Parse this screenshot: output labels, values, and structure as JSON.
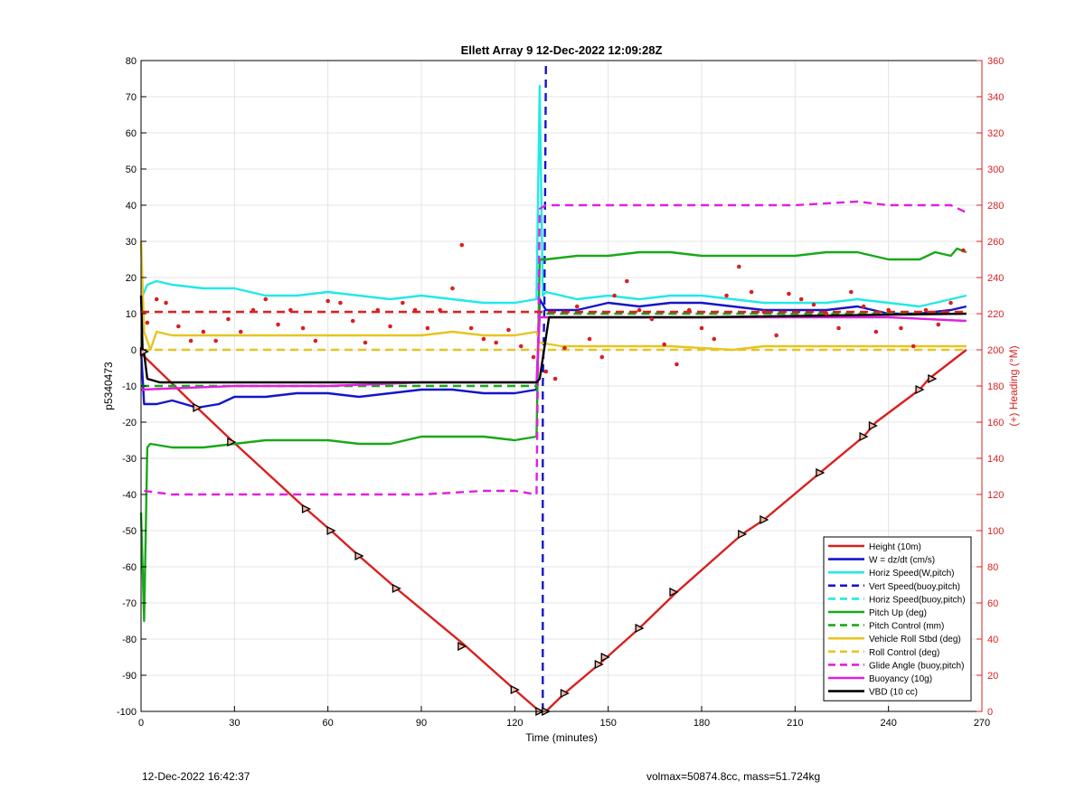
{
  "footer": {
    "left": "12-Dec-2022 16:42:37",
    "right": "volmax=50874.8cc, mass=51.724kg"
  },
  "chart_data": {
    "type": "line",
    "title": "Ellett Array 9 12-Dec-2022 12:09:28Z",
    "xlabel": "Time (minutes)",
    "ylabel": "p5340473",
    "y2label": "(+) Heading (°M)",
    "xlim": [
      0,
      270
    ],
    "ylim": [
      -100,
      80
    ],
    "y2lim": [
      0,
      360
    ],
    "xticks": [
      0,
      30,
      60,
      90,
      120,
      150,
      180,
      210,
      240,
      270
    ],
    "yticks": [
      -100,
      -90,
      -80,
      -70,
      -60,
      -50,
      -40,
      -30,
      -20,
      -10,
      0,
      10,
      20,
      30,
      40,
      50,
      60,
      70,
      80
    ],
    "y2ticks": [
      0,
      20,
      40,
      60,
      80,
      100,
      120,
      140,
      160,
      180,
      200,
      220,
      240,
      260,
      280,
      300,
      320,
      340,
      360
    ],
    "grid": true,
    "legend_position": "bottom-right",
    "colors": {
      "red": "#d92020",
      "blue": "#1515c8",
      "cyan": "#22e8e8",
      "green": "#18a818",
      "yellow": "#e6c420",
      "magenta": "#e020e0",
      "black": "#000000",
      "axis2": "#d92020"
    },
    "series": [
      {
        "name": "Height (10m)",
        "color": "#d92020",
        "style": "solid",
        "axis": "left",
        "x": [
          0,
          18,
          29,
          53,
          61,
          70,
          82,
          103,
          120,
          128,
          130,
          136,
          147,
          160,
          172,
          193,
          200,
          218,
          232,
          236,
          250,
          253,
          265
        ],
        "y": [
          -1,
          -16,
          -25,
          -44,
          -50,
          -57,
          -66,
          -81,
          -94,
          -100,
          -100,
          -95,
          -87,
          -77,
          -67,
          -51,
          -47,
          -34,
          -24,
          -20,
          -11,
          -8,
          0
        ]
      },
      {
        "name": "W = dz/dt (cm/s)",
        "color": "#1515c8",
        "style": "solid",
        "axis": "left",
        "x": [
          0,
          1,
          5,
          10,
          18,
          25,
          30,
          40,
          50,
          60,
          70,
          80,
          90,
          100,
          110,
          120,
          127,
          128,
          130,
          140,
          150,
          160,
          170,
          180,
          190,
          200,
          210,
          220,
          230,
          240,
          250,
          260,
          265
        ],
        "y": [
          0,
          -15,
          -15,
          -14,
          -16,
          -15,
          -13,
          -13,
          -12,
          -12,
          -13,
          -12,
          -11,
          -11,
          -12,
          -12,
          -11,
          14,
          11,
          11,
          13,
          12,
          13,
          13,
          12,
          11,
          11,
          11,
          12,
          10,
          10,
          11,
          12
        ]
      },
      {
        "name": "Horiz Speed(W,pitch)",
        "color": "#22e8e8",
        "style": "solid",
        "axis": "left",
        "x": [
          0,
          2,
          5,
          10,
          20,
          30,
          40,
          50,
          60,
          70,
          80,
          90,
          100,
          110,
          120,
          127,
          128,
          129,
          130,
          140,
          150,
          160,
          170,
          180,
          190,
          200,
          210,
          220,
          230,
          240,
          250,
          260,
          265
        ],
        "y": [
          14,
          18,
          19,
          18,
          17,
          17,
          15,
          15,
          16,
          15,
          14,
          15,
          14,
          13,
          13,
          14,
          73,
          15,
          16,
          14,
          15,
          14,
          15,
          15,
          14,
          13,
          13,
          13,
          14,
          13,
          12,
          14,
          15
        ]
      },
      {
        "name": "Vert Speed(buoy,pitch)",
        "color": "#1515c8",
        "style": "dashed",
        "axis": "left",
        "x": [
          129,
          129,
          129.5,
          130
        ],
        "y": [
          -100,
          -10,
          12,
          80
        ]
      },
      {
        "name": "Horiz Speed(buoy,pitch)",
        "color": "#22e8e8",
        "style": "dashed",
        "axis": "left",
        "x": [],
        "y": []
      },
      {
        "name": "Pitch Up (deg)",
        "color": "#18a818",
        "style": "solid",
        "axis": "left",
        "x": [
          0,
          1,
          2,
          3,
          10,
          20,
          30,
          40,
          50,
          60,
          70,
          80,
          90,
          100,
          110,
          120,
          127,
          128,
          130,
          140,
          150,
          160,
          170,
          180,
          190,
          200,
          210,
          220,
          230,
          240,
          250,
          255,
          260,
          262,
          265
        ],
        "y": [
          -45,
          -75,
          -27,
          -26,
          -27,
          -27,
          -26,
          -25,
          -25,
          -25,
          -26,
          -26,
          -24,
          -24,
          -24,
          -25,
          -24,
          25,
          25,
          26,
          26,
          27,
          27,
          26,
          26,
          26,
          26,
          27,
          27,
          25,
          25,
          27,
          26,
          28,
          27
        ]
      },
      {
        "name": "Pitch Control (mm)",
        "color": "#18a818",
        "style": "dashed",
        "axis": "left",
        "x": [
          0,
          127,
          128,
          265
        ],
        "y": [
          -10,
          -10,
          10,
          10
        ]
      },
      {
        "name": "Vehicle Roll Stbd (deg)",
        "color": "#e6c420",
        "style": "solid",
        "axis": "left",
        "x": [
          0,
          1,
          3,
          5,
          10,
          30,
          50,
          70,
          90,
          100,
          110,
          120,
          127,
          128,
          135,
          150,
          170,
          190,
          200,
          220,
          240,
          250,
          260,
          265
        ],
        "y": [
          30,
          5,
          0,
          5,
          4,
          4,
          4,
          4,
          4,
          5,
          4,
          4,
          5,
          2,
          1,
          1,
          1,
          0,
          1,
          1,
          1,
          1,
          1,
          1
        ]
      },
      {
        "name": "Roll Control (deg)",
        "color": "#e6c420",
        "style": "dashed",
        "axis": "left",
        "x": [
          0,
          127,
          128,
          265
        ],
        "y": [
          0,
          0,
          0,
          0
        ]
      },
      {
        "name": "Glide Angle (buoy,pitch)",
        "color": "#e020e0",
        "style": "dashed",
        "axis": "left",
        "x": [
          1,
          10,
          30,
          60,
          90,
          110,
          120,
          127,
          128,
          130,
          140,
          150,
          170,
          190,
          210,
          230,
          240,
          250,
          260,
          265
        ],
        "y": [
          -39,
          -40,
          -40,
          -40,
          -40,
          -39,
          -39,
          -40,
          39,
          40,
          40,
          40,
          40,
          40,
          40,
          41,
          40,
          40,
          40,
          38
        ]
      },
      {
        "name": "Buoyancy (10g)",
        "color": "#e020e0",
        "style": "solid",
        "axis": "left",
        "x": [
          0,
          30,
          60,
          90,
          127,
          128,
          150,
          180,
          210,
          240,
          265
        ],
        "y": [
          -11,
          -10,
          -10,
          -9,
          -9,
          9,
          9,
          9,
          9,
          9,
          8
        ]
      },
      {
        "name": "VBD (10 cc)",
        "color": "#000000",
        "style": "solid",
        "axis": "left",
        "x": [
          0,
          0.5,
          1,
          2,
          6,
          127,
          128,
          131,
          180,
          265
        ],
        "y": [
          15,
          0,
          -1,
          -8,
          -9,
          -9,
          -8,
          9,
          9,
          10
        ]
      },
      {
        "name": "Heading",
        "color": "#d92020",
        "style": "dots",
        "axis": "right",
        "x": [
          2,
          5,
          8,
          12,
          16,
          20,
          24,
          28,
          32,
          36,
          40,
          44,
          48,
          52,
          56,
          60,
          64,
          68,
          72,
          76,
          80,
          84,
          88,
          92,
          96,
          100,
          103,
          106,
          110,
          114,
          118,
          122,
          126,
          130,
          133,
          136,
          140,
          144,
          148,
          152,
          156,
          160,
          164,
          168,
          172,
          176,
          180,
          184,
          188,
          192,
          196,
          200,
          204,
          208,
          212,
          216,
          220,
          224,
          228,
          232,
          236,
          240,
          244,
          248,
          252,
          256,
          260,
          264
        ],
        "y": [
          215,
          228,
          226,
          213,
          205,
          210,
          205,
          217,
          210,
          222,
          228,
          214,
          222,
          212,
          205,
          227,
          226,
          216,
          204,
          222,
          213,
          226,
          222,
          212,
          222,
          234,
          258,
          212,
          206,
          204,
          211,
          202,
          196,
          188,
          184,
          201,
          224,
          206,
          196,
          230,
          238,
          222,
          217,
          203,
          192,
          222,
          212,
          206,
          230,
          246,
          232,
          221,
          208,
          231,
          228,
          225,
          220,
          212,
          232,
          224,
          210,
          222,
          212,
          202,
          222,
          214,
          226,
          255
        ]
      },
      {
        "name": "Heading target",
        "color": "#d92020",
        "style": "dashed",
        "axis": "right",
        "x": [
          0,
          265
        ],
        "y": [
          221,
          221
        ]
      }
    ],
    "markers": {
      "x": [
        1,
        18,
        29,
        53,
        61,
        70,
        82,
        103,
        120,
        128,
        130,
        136,
        147,
        149,
        160,
        171,
        193,
        200,
        218,
        232,
        235,
        250,
        254
      ],
      "y": [
        -0.5,
        -16,
        -25.5,
        -44,
        -50,
        -57,
        -66,
        -82,
        -94,
        -100,
        -100,
        -95,
        -87,
        -85,
        -77,
        -67,
        -51,
        -47,
        -34,
        -24,
        -21,
        -11,
        -8
      ]
    }
  }
}
